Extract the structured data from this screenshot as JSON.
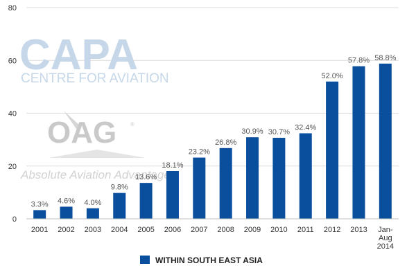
{
  "watermarks": {
    "capa_logo": "CAPA",
    "capa_sub": "CENTRE FOR AVIATION",
    "oag_logo": "OAG",
    "oag_reg": "®",
    "oag_sub": "Absolute Aviation Advantage"
  },
  "chart_data": {
    "type": "bar",
    "categories": [
      "2001",
      "2002",
      "2003",
      "2004",
      "2005",
      "2006",
      "2007",
      "2008",
      "2009",
      "2010",
      "2011",
      "2012",
      "2013",
      "Jan-Aug 2014"
    ],
    "series": [
      {
        "name": "WITHIN SOUTH EAST ASIA",
        "color": "#0a4f9e",
        "values": [
          3.3,
          4.6,
          4.0,
          9.8,
          13.6,
          18.1,
          23.2,
          26.8,
          30.9,
          30.7,
          32.4,
          52.0,
          57.8,
          58.8
        ],
        "data_labels": [
          "3.3%",
          "4.6%",
          "4.0%",
          "9.8%",
          "13.6%",
          "18.1%",
          "23.2%",
          "26.8%",
          "30.9%",
          "30.7%",
          "32.4%",
          "52.0%",
          "57.8%",
          "58.8%"
        ]
      }
    ],
    "ylim": [
      0,
      80
    ],
    "yticks": [
      0,
      20,
      40,
      60,
      80
    ],
    "grid": true,
    "legend_position": "bottom",
    "xlabel": "",
    "ylabel": ""
  }
}
